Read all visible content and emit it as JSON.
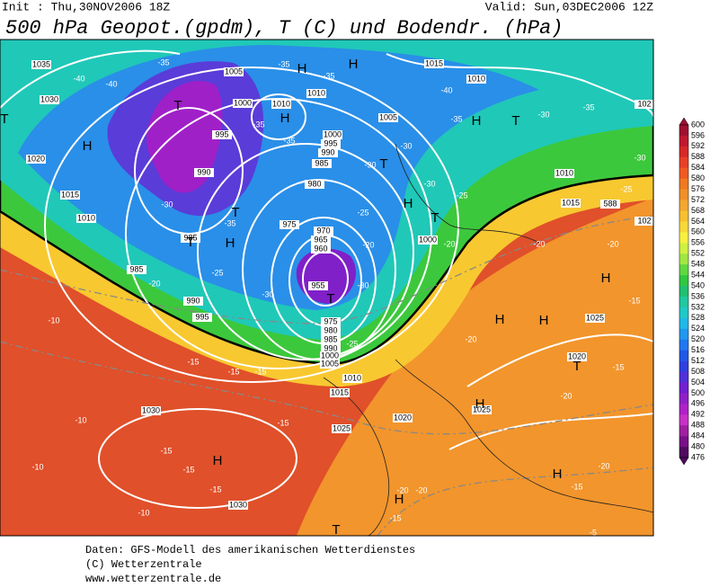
{
  "header": {
    "init": "Init : Thu,30NOV2006 18Z",
    "valid": "Valid: Sun,03DEC2006 12Z",
    "title": "500 hPa Geopot.(gpdm), T (C) und Bodendr. (hPa)"
  },
  "map": {
    "labels": [
      "1035",
      "1030",
      "1020",
      "1015",
      "1010",
      "985",
      "985",
      "990",
      "995",
      "1005",
      "1000",
      "995",
      "990",
      "1010",
      "1010",
      "1005",
      "1000",
      "995",
      "990",
      "985",
      "980",
      "975",
      "970",
      "965",
      "960",
      "955",
      "975",
      "980",
      "985",
      "990",
      "1000",
      "1005",
      "1010",
      "1015",
      "1020",
      "1025",
      "1025",
      "1030",
      "1030",
      "1015",
      "1010",
      "1010",
      "1015",
      "1000",
      "1025",
      "1020",
      "102",
      "102",
      "588",
      "-35",
      "-40",
      "-40",
      "-35",
      "-35",
      "-40",
      "-35",
      "-30",
      "-35",
      "-30",
      "-25",
      "-35",
      "-35",
      "-30",
      "-30",
      "-30",
      "-25",
      "-25",
      "-30",
      "-35",
      "-20",
      "-20",
      "-25",
      "-20",
      "-30",
      "-30",
      "-10",
      "-25",
      "-20",
      "-15",
      "-15",
      "-15",
      "-10",
      "-15",
      "-15",
      "-15",
      "-10",
      "-10",
      "-15",
      "-20",
      "-20",
      "-15",
      "-20",
      "-15",
      "-20",
      "-15",
      "-15",
      "-20",
      "-20",
      "-5",
      "H",
      "T",
      "H",
      "H",
      "H",
      "T",
      "H",
      "T",
      "H",
      "T",
      "T",
      "H",
      "T",
      "T",
      "H",
      "H",
      "H",
      "T",
      "H",
      "H",
      "H",
      "H",
      "T",
      "T"
    ]
  },
  "colorbar": {
    "labels": [
      600,
      596,
      592,
      588,
      584,
      580,
      576,
      572,
      568,
      564,
      560,
      556,
      552,
      548,
      544,
      540,
      536,
      532,
      528,
      524,
      520,
      516,
      512,
      508,
      504,
      500,
      496,
      492,
      488,
      484,
      480,
      476
    ],
    "colors": [
      "#a01030",
      "#c01830",
      "#d82828",
      "#e84028",
      "#f05a20",
      "#f07820",
      "#f09028",
      "#f4a830",
      "#f8c030",
      "#f8d838",
      "#f8f040",
      "#d0f040",
      "#a0e840",
      "#60d840",
      "#30c840",
      "#20c070",
      "#20c8a0",
      "#20c8c8",
      "#20b8e8",
      "#2098f0",
      "#2078f0",
      "#2058e8",
      "#3040e0",
      "#5030d8",
      "#7020d0",
      "#9020c8",
      "#b020c8",
      "#c830c8",
      "#a020a0",
      "#7a1088",
      "#500a60"
    ]
  },
  "footer": {
    "lines": [
      "Daten: GFS-Modell des amerikanischen Wetterdienstes",
      "(C) Wetterzentrale",
      "www.wetterzentrale.de"
    ]
  }
}
